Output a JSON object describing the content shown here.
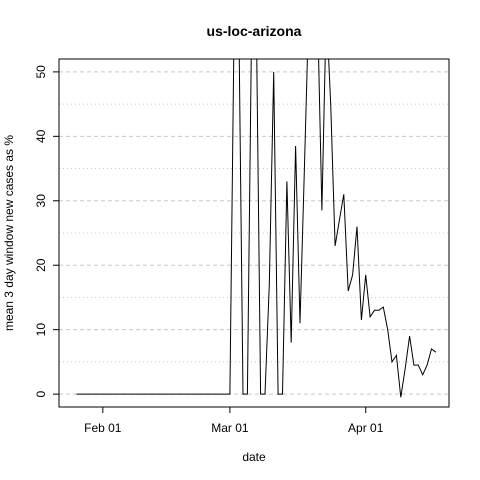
{
  "chart_data": {
    "type": "line",
    "title": "us-loc-arizona",
    "xlabel": "date",
    "ylabel": "mean  3  day window new cases as %",
    "x_ticks": [
      {
        "label": "Feb 01",
        "date": "2020-02-01"
      },
      {
        "label": "Mar 01",
        "date": "2020-03-01"
      },
      {
        "label": "Apr 01",
        "date": "2020-04-01"
      }
    ],
    "y_ticks": [
      0,
      10,
      20,
      30,
      40,
      50
    ],
    "ylim": [
      -2,
      52
    ],
    "xlim": [
      "2020-01-22",
      "2020-04-20"
    ],
    "grid": {
      "major": "dashed",
      "minor": "dotted",
      "minor_y": [
        5,
        15,
        25,
        35,
        45
      ]
    },
    "series": [
      {
        "values": [
          [
            "2020-01-26",
            0
          ],
          [
            "2020-02-29",
            0
          ],
          [
            "2020-03-01",
            0
          ],
          [
            "2020-03-02",
            60
          ],
          [
            "2020-03-03",
            60
          ],
          [
            "2020-03-04",
            0
          ],
          [
            "2020-03-05",
            0
          ],
          [
            "2020-03-06",
            60
          ],
          [
            "2020-03-07",
            60
          ],
          [
            "2020-03-08",
            0
          ],
          [
            "2020-03-09",
            0
          ],
          [
            "2020-03-10",
            17
          ],
          [
            "2020-03-11",
            50
          ],
          [
            "2020-03-12",
            0
          ],
          [
            "2020-03-13",
            0
          ],
          [
            "2020-03-14",
            33
          ],
          [
            "2020-03-15",
            8
          ],
          [
            "2020-03-16",
            38.5
          ],
          [
            "2020-03-17",
            11
          ],
          [
            "2020-03-18",
            35
          ],
          [
            "2020-03-19",
            60
          ],
          [
            "2020-03-21",
            60
          ],
          [
            "2020-03-22",
            28.5
          ],
          [
            "2020-03-23",
            60
          ],
          [
            "2020-03-24",
            45
          ],
          [
            "2020-03-25",
            23
          ],
          [
            "2020-03-26",
            27
          ],
          [
            "2020-03-27",
            31
          ],
          [
            "2020-03-28",
            16
          ],
          [
            "2020-03-29",
            18.5
          ],
          [
            "2020-03-30",
            26
          ],
          [
            "2020-03-31",
            11.5
          ],
          [
            "2020-04-01",
            18.5
          ],
          [
            "2020-04-02",
            12
          ],
          [
            "2020-04-03",
            13
          ],
          [
            "2020-04-04",
            13
          ],
          [
            "2020-04-05",
            13.5
          ],
          [
            "2020-04-06",
            10
          ],
          [
            "2020-04-07",
            5
          ],
          [
            "2020-04-08",
            6
          ],
          [
            "2020-04-09",
            -0.5
          ],
          [
            "2020-04-10",
            4
          ],
          [
            "2020-04-11",
            9
          ],
          [
            "2020-04-12",
            4.5
          ],
          [
            "2020-04-13",
            4.5
          ],
          [
            "2020-04-14",
            3
          ],
          [
            "2020-04-15",
            4.5
          ],
          [
            "2020-04-16",
            7
          ],
          [
            "2020-04-17",
            6.5
          ]
        ]
      }
    ]
  }
}
